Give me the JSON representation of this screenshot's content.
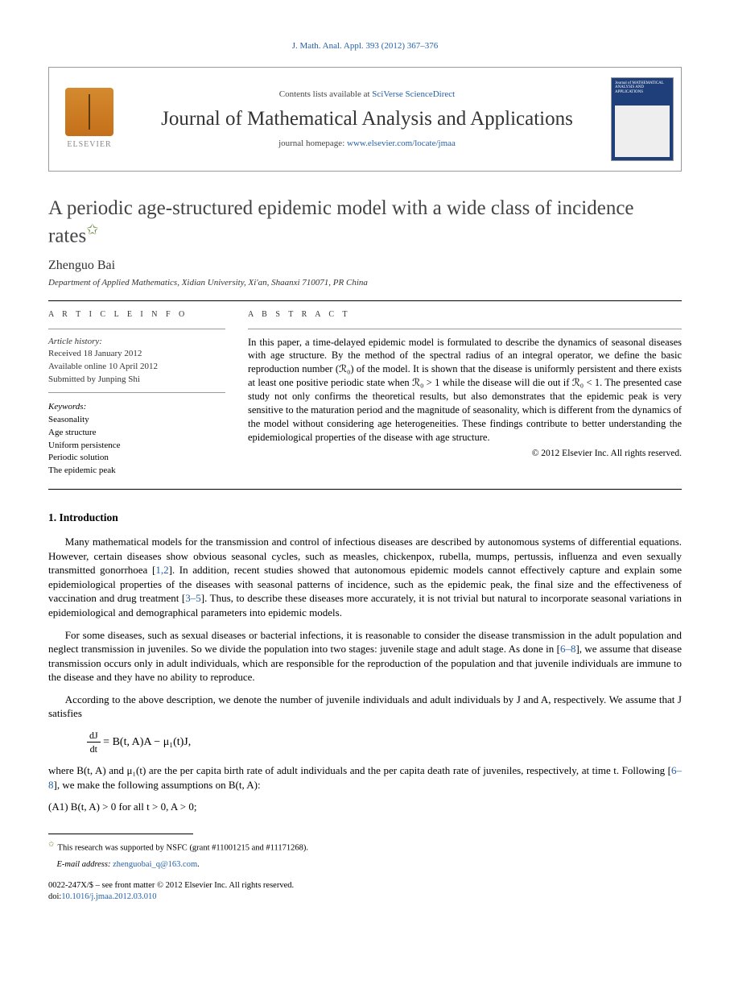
{
  "header": {
    "citation": "J. Math. Anal. Appl. 393 (2012) 367–376",
    "contents_prefix": "Contents lists available at ",
    "contents_link": "SciVerse ScienceDirect",
    "journal_name": "Journal of Mathematical Analysis and Applications",
    "homepage_prefix": "journal homepage: ",
    "homepage_link": "www.elsevier.com/locate/jmaa",
    "elsevier_label": "ELSEVIER",
    "cover_text": "Journal of MATHEMATICAL ANALYSIS AND APPLICATIONS"
  },
  "title": "A periodic age-structured epidemic model with a wide class of incidence rates",
  "title_marker": "✩",
  "author": "Zhenguo Bai",
  "affiliation": "Department of Applied Mathematics, Xidian University, Xi'an, Shaanxi 710071, PR China",
  "info": {
    "heading": "A R T I C L E   I N F O",
    "history_label": "Article history:",
    "received": "Received 18 January 2012",
    "online": "Available online 10 April 2012",
    "submitted": "Submitted by Junping Shi",
    "keywords_label": "Keywords:",
    "keywords": [
      "Seasonality",
      "Age structure",
      "Uniform persistence",
      "Periodic solution",
      "The epidemic peak"
    ]
  },
  "abstract": {
    "heading": "A B S T R A C T",
    "text": "In this paper, a time-delayed epidemic model is formulated to describe the dynamics of seasonal diseases with age structure. By the method of the spectral radius of an integral operator, we define the basic reproduction number (ℛ₀) of the model. It is shown that the disease is uniformly persistent and there exists at least one positive periodic state when ℛ₀ > 1 while the disease will die out if ℛ₀ < 1. The presented case study not only confirms the theoretical results, but also demonstrates that the epidemic peak is very sensitive to the maturation period and the magnitude of seasonality, which is different from the dynamics of the model without considering age heterogeneities. These findings contribute to better understanding the epidemiological properties of the disease with age structure.",
    "copyright": "© 2012 Elsevier Inc. All rights reserved."
  },
  "section1": {
    "heading": "1. Introduction",
    "p1a": "Many mathematical models for the transmission and control of infectious diseases are described by autonomous systems of differential equations. However, certain diseases show obvious seasonal cycles, such as measles, chickenpox, rubella, mumps, pertussis, influenza and even sexually transmitted gonorrhoea [",
    "p1_ref1": "1,2",
    "p1b": "]. In addition, recent studies showed that autonomous epidemic models cannot effectively capture and explain some epidemiological properties of the diseases with seasonal patterns of incidence, such as the epidemic peak, the final size and the effectiveness of vaccination and drug treatment [",
    "p1_ref2": "3–5",
    "p1c": "]. Thus, to describe these diseases more accurately, it is not trivial but natural to incorporate seasonal variations in epidemiological and demographical parameters into epidemic models.",
    "p2a": "For some diseases, such as sexual diseases or bacterial infections, it is reasonable to consider the disease transmission in the adult population and neglect transmission in juveniles. So we divide the population into two stages: juvenile stage and adult stage. As done in [",
    "p2_ref1": "6–8",
    "p2b": "], we assume that disease transmission occurs only in adult individuals, which are responsible for the reproduction of the population and that juvenile individuals are immune to the disease and they have no ability to reproduce.",
    "p3": "According to the above description, we denote the number of juvenile individuals and adult individuals by J and A, respectively. We assume that J satisfies",
    "eq1": "= B(t, A)A − μ₁(t)J,",
    "eq1_num": "dJ",
    "eq1_den": "dt",
    "p4a": "where B(t, A) and μ₁(t) are the per capita birth rate of adult individuals and the per capita death rate of juveniles, respectively, at time t. Following [",
    "p4_ref1": "6–8",
    "p4b": "], we make the following assumptions on B(t, A):",
    "a1": "(A1)  B(t, A) > 0 for all t > 0, A > 0;"
  },
  "footer": {
    "funding_marker": "✩",
    "funding": "This research was supported by NSFC (grant #11001215 and #11171268).",
    "email_label": "E-mail address:",
    "email": "zhenguobai_q@163.com",
    "issn_line": "0022-247X/$ – see front matter © 2012 Elsevier Inc. All rights reserved.",
    "doi_label": "doi:",
    "doi": "10.1016/j.jmaa.2012.03.010"
  },
  "colors": {
    "link": "#2560a8",
    "text": "#000000",
    "muted": "#444444",
    "star": "#6a8a3a",
    "cover_bg": "#1f3f7a",
    "elsevier_orange": "#d58a2f"
  }
}
